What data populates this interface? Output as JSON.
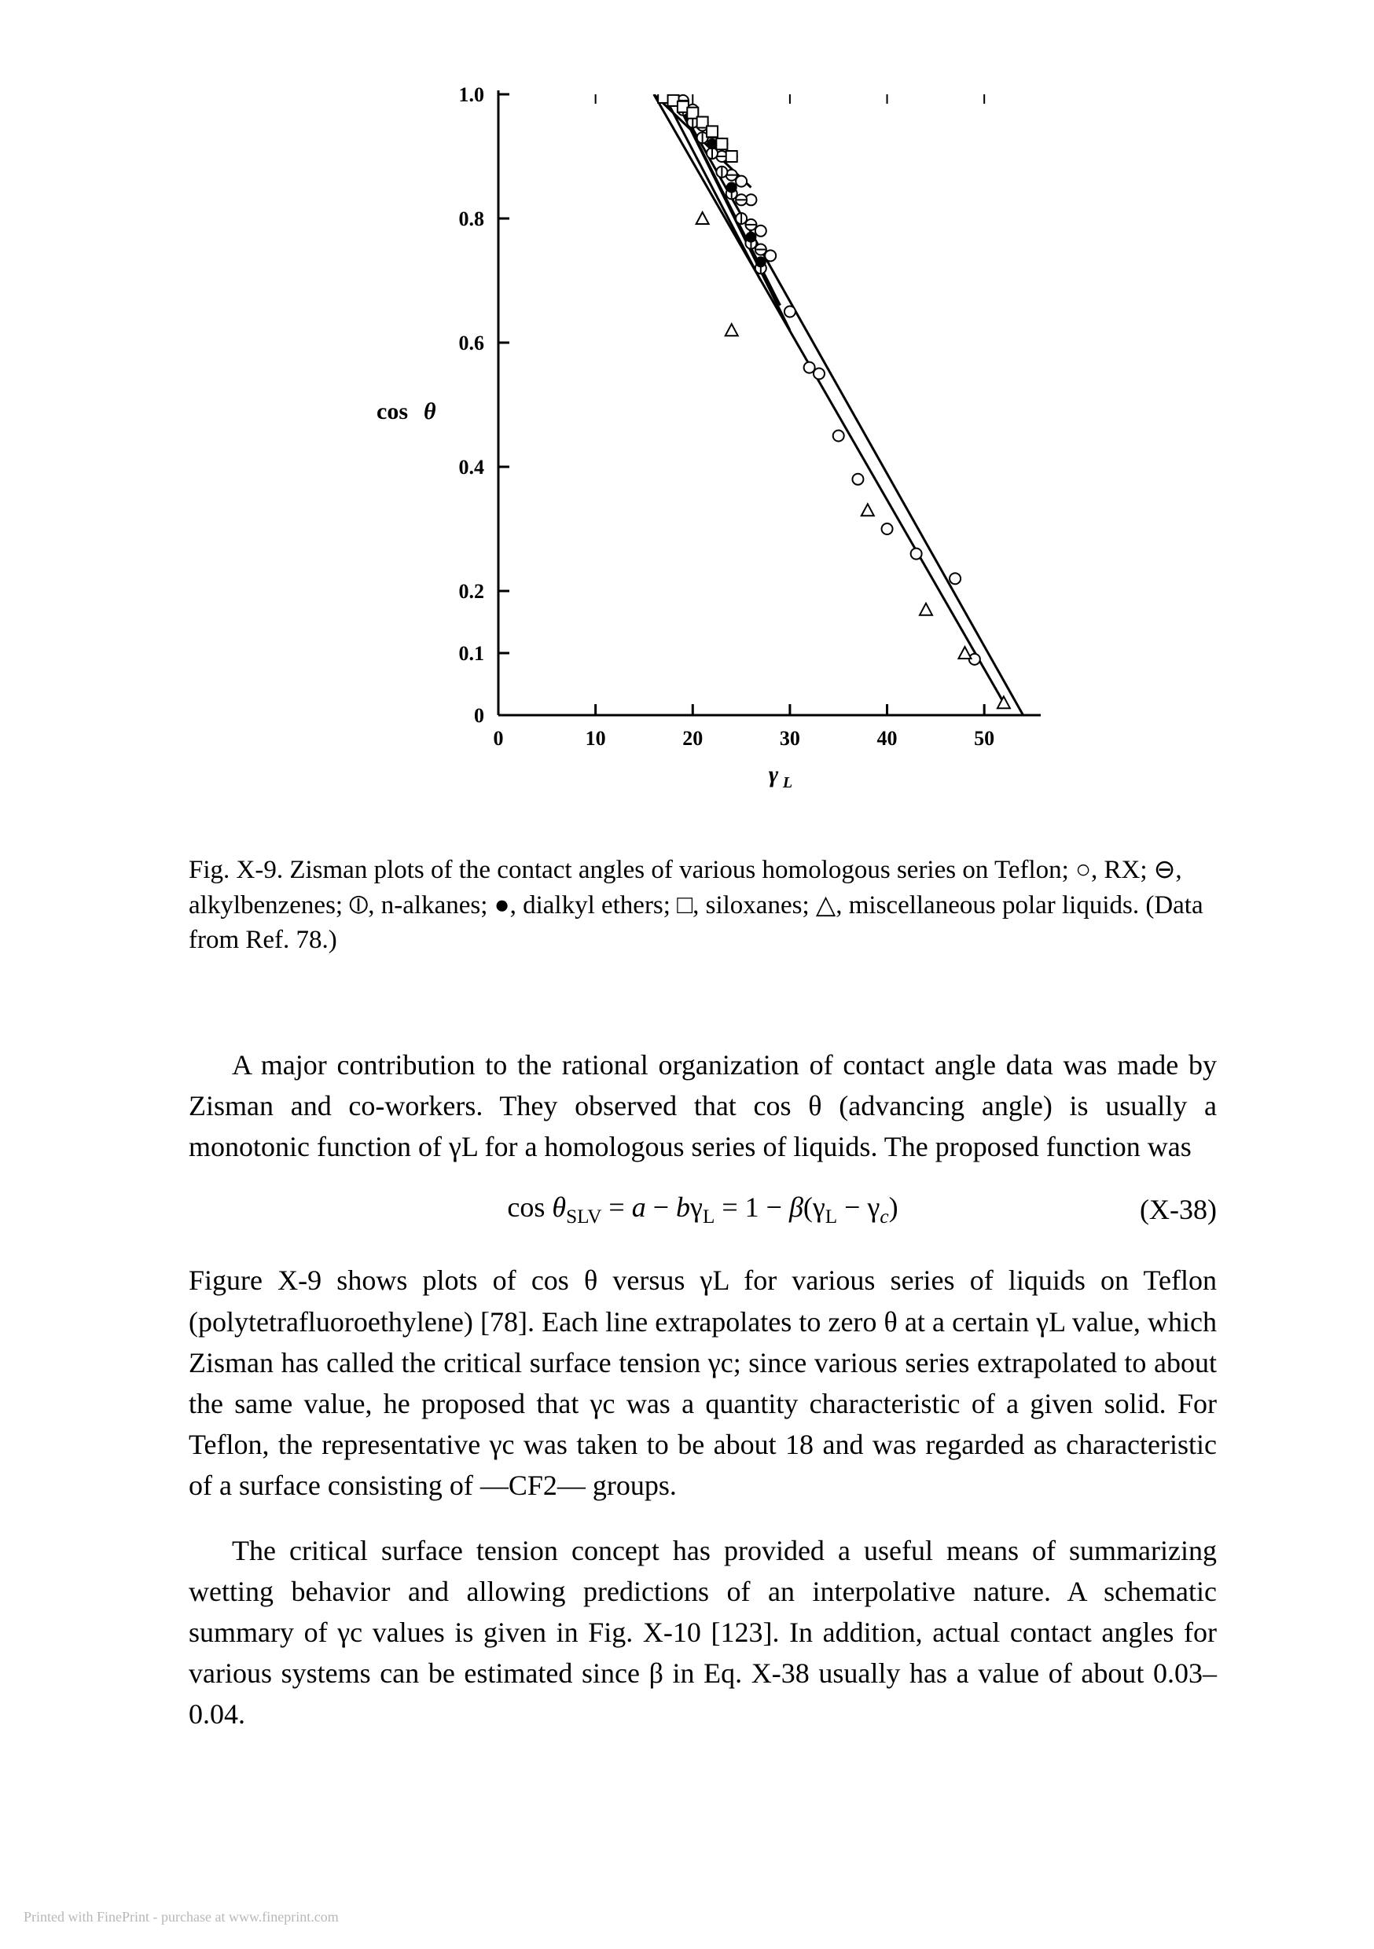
{
  "chart": {
    "type": "scatter-lines",
    "xlabel": "γ_L",
    "ylabel": "cos θ",
    "xlim": [
      0,
      55
    ],
    "ylim": [
      0,
      1.0
    ],
    "xticks": [
      0,
      10,
      20,
      30,
      40,
      50
    ],
    "yticks": [
      0,
      0.1,
      0.2,
      0.4,
      0.6,
      0.8,
      1.0
    ],
    "label_fontsize": 28,
    "tick_fontsize": 26,
    "line_color": "#000000",
    "background_color": "#ffffff",
    "series": [
      {
        "name": "RX",
        "marker": "open-circle",
        "points": [
          [
            18,
            0.99
          ],
          [
            19,
            0.98
          ],
          [
            20,
            0.97
          ],
          [
            21,
            0.955
          ],
          [
            22,
            0.94
          ],
          [
            23,
            0.92
          ],
          [
            24,
            0.9
          ],
          [
            25,
            0.86
          ],
          [
            26,
            0.83
          ],
          [
            27,
            0.78
          ],
          [
            28,
            0.74
          ],
          [
            30,
            0.65
          ],
          [
            32,
            0.56
          ],
          [
            33,
            0.55
          ],
          [
            35,
            0.45
          ],
          [
            37,
            0.38
          ],
          [
            40,
            0.3
          ],
          [
            43,
            0.26
          ],
          [
            47,
            0.22
          ],
          [
            49,
            0.09
          ]
        ],
        "line": [
          [
            16,
            1.0
          ],
          [
            52,
            0.02
          ]
        ]
      },
      {
        "name": "alkylbenzenes",
        "marker": "circle-minus",
        "points": [
          [
            19,
            0.99
          ],
          [
            20,
            0.975
          ],
          [
            21,
            0.95
          ],
          [
            22,
            0.93
          ],
          [
            23,
            0.9
          ],
          [
            24,
            0.87
          ],
          [
            25,
            0.83
          ],
          [
            26,
            0.79
          ],
          [
            27,
            0.75
          ]
        ],
        "line": [
          [
            18,
            1.0
          ],
          [
            30,
            0.62
          ]
        ]
      },
      {
        "name": "n-alkanes",
        "marker": "circle-bar",
        "points": [
          [
            18,
            0.99
          ],
          [
            19,
            0.975
          ],
          [
            20,
            0.955
          ],
          [
            21,
            0.93
          ],
          [
            22,
            0.905
          ],
          [
            23,
            0.875
          ],
          [
            24,
            0.84
          ],
          [
            25,
            0.8
          ],
          [
            26,
            0.76
          ],
          [
            27,
            0.72
          ]
        ],
        "line": [
          [
            17,
            1.0
          ],
          [
            27,
            0.7
          ]
        ]
      },
      {
        "name": "dialkyl-ethers",
        "marker": "filled-circle",
        "points": [
          [
            20,
            0.97
          ],
          [
            22,
            0.92
          ],
          [
            24,
            0.85
          ],
          [
            26,
            0.77
          ],
          [
            27,
            0.73
          ]
        ],
        "line": [
          [
            18,
            1.0
          ],
          [
            29,
            0.66
          ]
        ]
      },
      {
        "name": "siloxanes",
        "marker": "open-square",
        "points": [
          [
            17,
            0.995
          ],
          [
            18,
            0.99
          ],
          [
            19,
            0.98
          ],
          [
            20,
            0.97
          ],
          [
            21,
            0.955
          ],
          [
            22,
            0.94
          ],
          [
            23,
            0.92
          ],
          [
            24,
            0.9
          ]
        ],
        "line": [
          [
            16,
            1.0
          ],
          [
            26,
            0.85
          ]
        ]
      },
      {
        "name": "misc-polar",
        "marker": "open-triangle",
        "points": [
          [
            21,
            0.8
          ],
          [
            24,
            0.62
          ],
          [
            38,
            0.33
          ],
          [
            44,
            0.17
          ],
          [
            48,
            0.1
          ],
          [
            52,
            0.02
          ]
        ],
        "line": [
          [
            18,
            1.0
          ],
          [
            54,
            0.0
          ]
        ]
      }
    ]
  },
  "caption": "Fig. X-9. Zisman plots of the contact angles of various homologous series on Teflon; ○, RX; ⊖, alkylbenzenes; ⦶, n-alkanes; ●, dialkyl ethers; □, siloxanes; △, miscellaneous polar liquids. (Data from Ref. 78.)",
  "para1": "A major contribution to the rational organization of contact angle data was made by Zisman and co-workers. They observed that cos θ (advancing angle) is usually a monotonic function of γL for a homologous series of liquids. The proposed function was",
  "equation": "cos θSLV = a − bγL = 1 − β(γL − γc)",
  "eqnum": "(X-38)",
  "para2": "Figure X-9 shows plots of cos θ versus γL for various series of liquids on Teflon (polytetrafluoroethylene) [78]. Each line extrapolates to zero θ at a certain γL value, which Zisman has called the critical surface tension γc; since various series extrapolated to about the same value, he proposed that γc was a quantity characteristic of a given solid. For Teflon, the representative γc was taken to be about 18 and was regarded as characteristic of a surface consisting of —CF2— groups.",
  "para3": "The critical surface tension concept has provided a useful means of summarizing wetting behavior and allowing predictions of an interpolative nature. A schematic summary of γc values is given in Fig. X-10 [123]. In addition, actual contact angles for various systems can be estimated since β in Eq. X-38 usually has a value of about 0.03–0.04.",
  "footer": "Printed with FinePrint - purchase at www.fineprint.com"
}
